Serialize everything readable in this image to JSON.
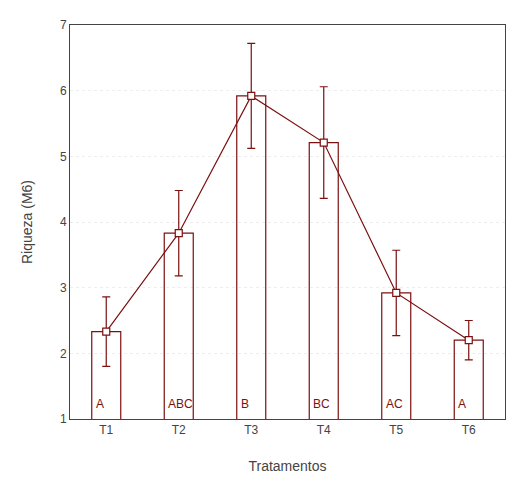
{
  "chart_data": {
    "type": "bar",
    "categories": [
      "T1",
      "T2",
      "T3",
      "T4",
      "T5",
      "T6"
    ],
    "values": [
      2.33,
      3.83,
      5.92,
      5.21,
      2.92,
      2.2
    ],
    "errors": [
      0.53,
      0.65,
      0.8,
      0.85,
      0.65,
      0.3
    ],
    "annotations": [
      "A",
      "ABC",
      "B",
      "BC",
      "AC",
      "A"
    ],
    "color": "#7B1010",
    "marker": "square",
    "xlabel": "Tratamentos",
    "ylabel": "Riqueza (M6)",
    "ylim": [
      1,
      7
    ],
    "yticks": [
      1,
      2,
      3,
      4,
      5,
      6,
      7
    ],
    "grid": true
  }
}
